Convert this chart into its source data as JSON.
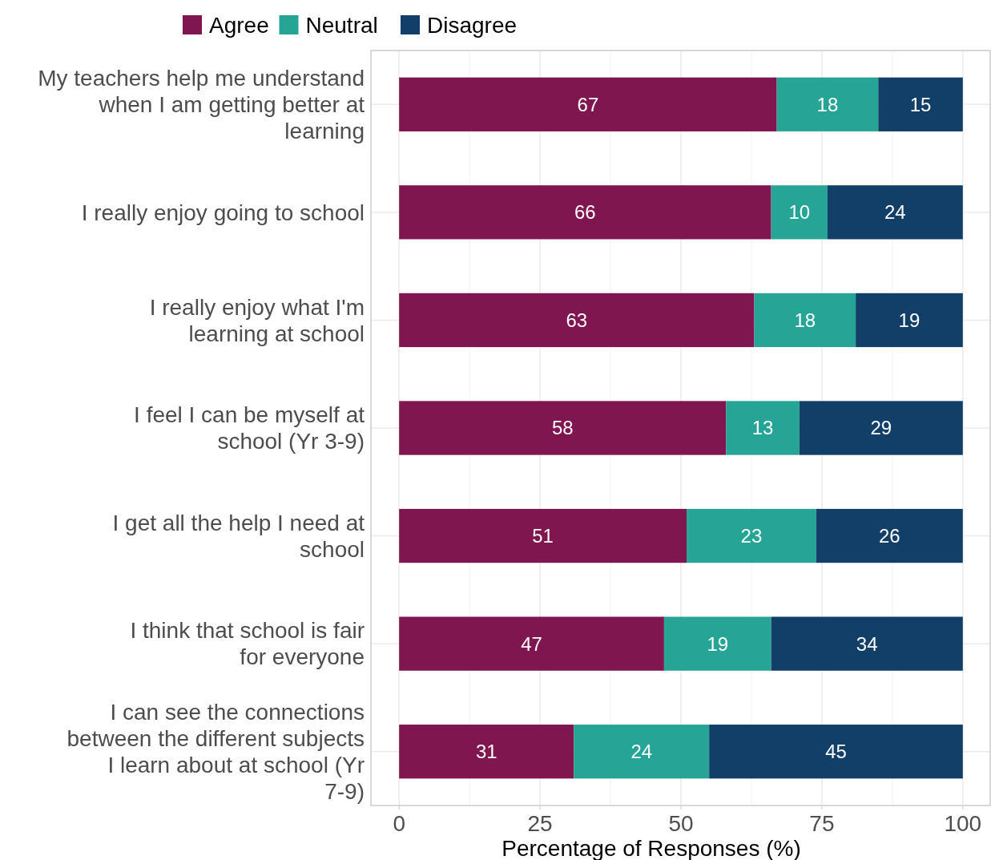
{
  "chart_data": {
    "type": "bar",
    "orientation": "horizontal",
    "stacked": true,
    "xlabel": "Percentage of Responses (%)",
    "categories": [
      "My teachers help me understand when I am getting better at learning",
      "I really enjoy going to school",
      "I really enjoy what I'm learning at school",
      "I feel I can be myself at school (Yr 3-9)",
      "I get all the help I need at school",
      "I think that school is fair for everyone",
      "I can see the connections between the different subjects I learn about at school (Yr 7-9)"
    ],
    "series": [
      {
        "name": "Agree",
        "color": "#7f1650",
        "values": [
          67,
          66,
          63,
          58,
          51,
          47,
          31
        ]
      },
      {
        "name": "Neutral",
        "color": "#26a596",
        "values": [
          18,
          10,
          18,
          13,
          23,
          19,
          24
        ]
      },
      {
        "name": "Disagree",
        "color": "#123f68",
        "values": [
          15,
          24,
          19,
          29,
          26,
          34,
          45
        ]
      }
    ],
    "xlim": [
      -5,
      105
    ],
    "xticks": [
      0,
      25,
      50,
      75,
      100
    ],
    "grid": true,
    "legend": "top",
    "data_labels": true
  }
}
